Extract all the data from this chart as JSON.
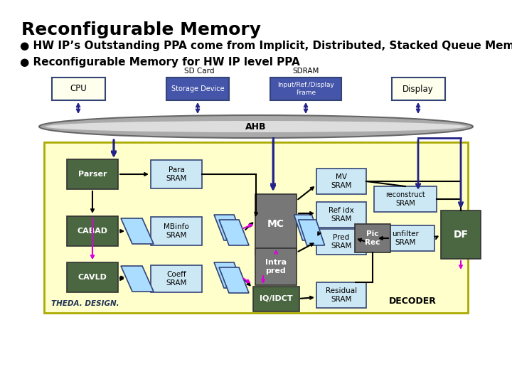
{
  "title": "Reconfigurable Memory",
  "bullet1": "● HW IP’s Outstanding PPA come from Implicit, Distributed, Stacked Queue Memory",
  "bullet2": "● Reconfigurable Memory for HW IP level PPA",
  "bg_color": "#ffffff",
  "diagram_bg": "#ffffcc",
  "title_fontsize": 18,
  "bullet_fontsize": 11,
  "ahb_label": "AHB",
  "decoder_label": "DECODER",
  "theda_label": "THEDA. DESIGN."
}
